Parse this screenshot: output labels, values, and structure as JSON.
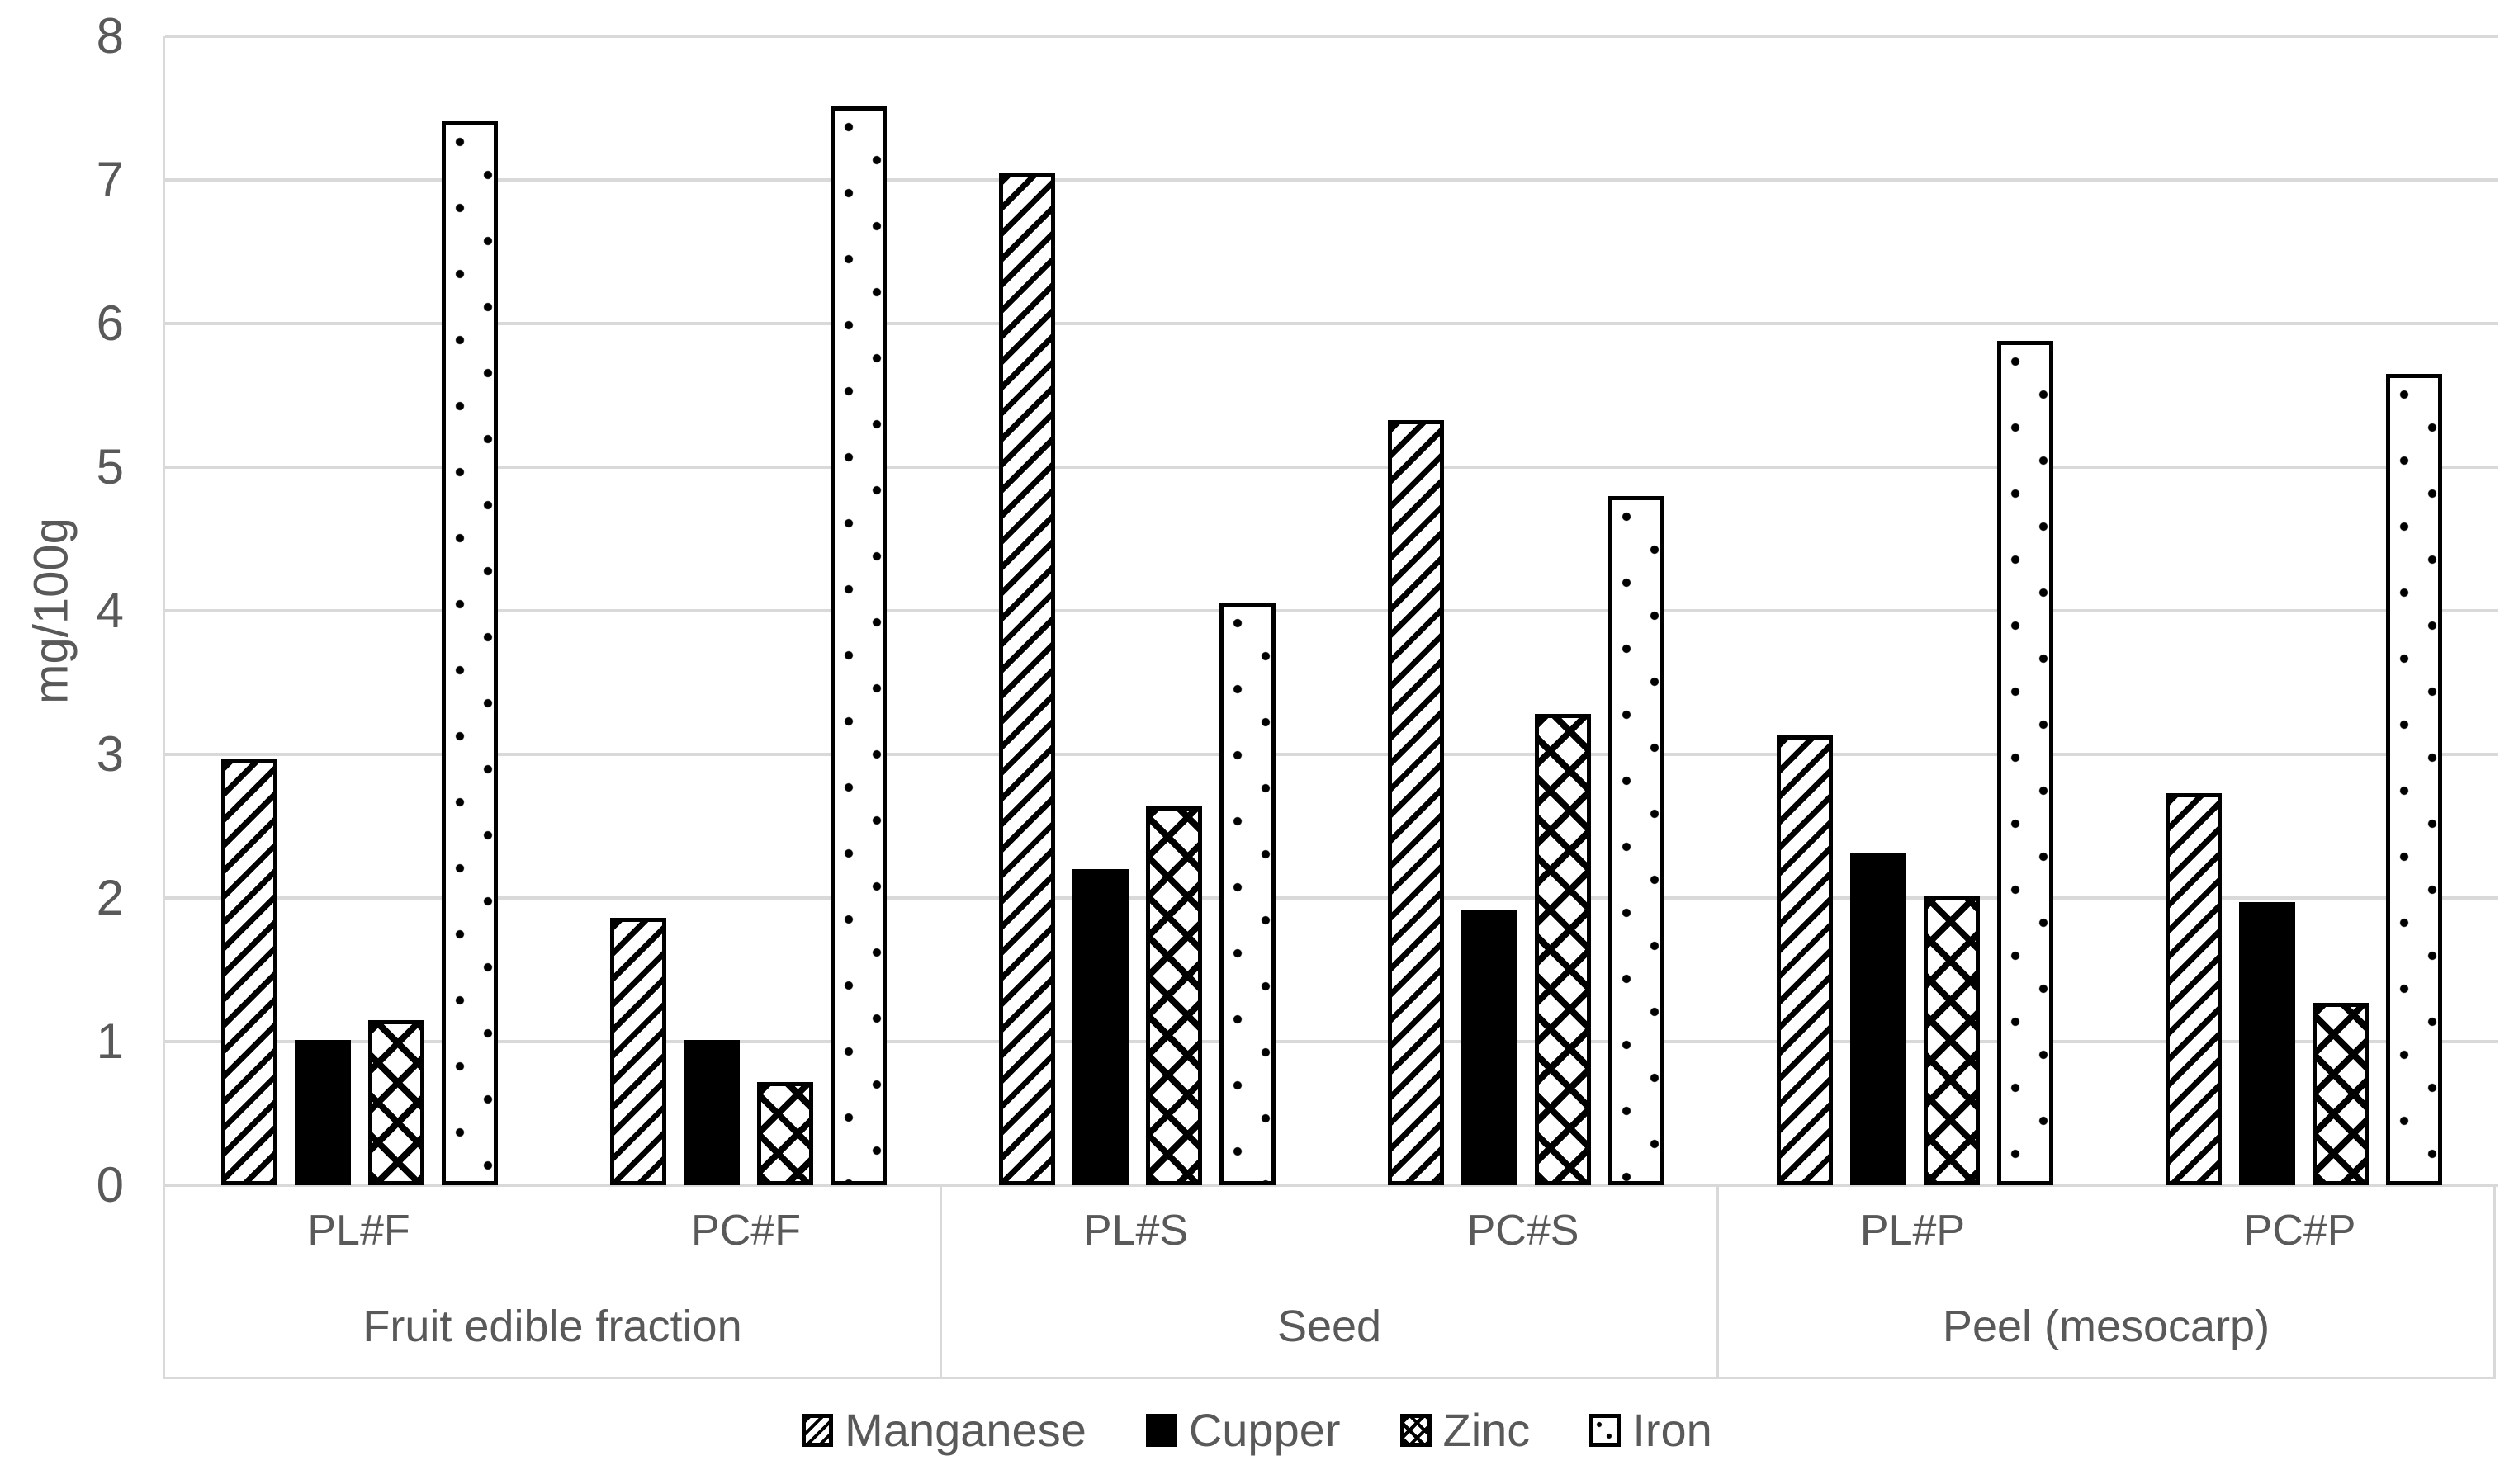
{
  "chart_data": {
    "type": "bar",
    "title": "",
    "ylabel": "mg/100g",
    "ylim": [
      0,
      8
    ],
    "ytick_step": 1,
    "yticks": [
      0,
      1,
      2,
      3,
      4,
      5,
      6,
      7,
      8
    ],
    "grid": "horizontal-gridlines-on",
    "legend_position": "bottom",
    "categories": [
      "PL#F",
      "PC#F",
      "PL#S",
      "PC#S",
      "PL#P",
      "PC#P"
    ],
    "groups": [
      {
        "label": "Fruit edible fraction",
        "subgroups": [
          "PL#F",
          "PC#F"
        ]
      },
      {
        "label": "Seed",
        "subgroups": [
          "PL#S",
          "PC#S"
        ]
      },
      {
        "label": "Peel (mesocarp)",
        "subgroups": [
          "PL#P",
          "PC#P"
        ]
      }
    ],
    "series": [
      {
        "name": "Manganese",
        "pattern": "diagonal-hatch",
        "values": [
          2.97,
          1.86,
          7.05,
          5.33,
          3.13,
          2.73
        ]
      },
      {
        "name": "Cupper",
        "pattern": "solid",
        "values": [
          1.01,
          1.01,
          2.2,
          1.92,
          2.31,
          1.97
        ]
      },
      {
        "name": "Zinc",
        "pattern": "weave",
        "values": [
          1.15,
          0.72,
          2.64,
          3.28,
          2.02,
          1.27
        ]
      },
      {
        "name": "Iron",
        "pattern": "dots",
        "values": [
          7.41,
          7.51,
          4.06,
          4.8,
          5.88,
          5.65
        ]
      }
    ],
    "colors": {
      "background": "#ffffff",
      "gridline": "#d9d9d9",
      "axis_text": "#595959",
      "bar_border": "#000000",
      "bar_fill": "#ffffff",
      "pattern_ink": "#000000"
    }
  }
}
